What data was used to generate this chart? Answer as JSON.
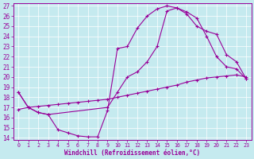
{
  "xlabel": "Windchill (Refroidissement éolien,°C)",
  "bg_color": "#c5eaef",
  "line_color": "#990099",
  "grid_color": "#ffffff",
  "xlim": [
    -0.5,
    23.5
  ],
  "ylim": [
    13.8,
    27.3
  ],
  "yticks": [
    14,
    15,
    16,
    17,
    18,
    19,
    20,
    21,
    22,
    23,
    24,
    25,
    26,
    27
  ],
  "xticks": [
    0,
    1,
    2,
    3,
    4,
    5,
    6,
    7,
    8,
    9,
    10,
    11,
    12,
    13,
    14,
    15,
    16,
    17,
    18,
    19,
    20,
    21,
    22,
    23
  ],
  "line1_x": [
    0,
    1,
    2,
    3,
    4,
    5,
    6,
    7,
    8,
    9,
    10,
    11,
    12,
    13,
    14,
    15,
    16,
    17,
    18,
    19,
    20,
    21,
    22,
    23
  ],
  "line1_y": [
    18.5,
    17.0,
    16.5,
    16.3,
    14.8,
    14.5,
    14.2,
    14.1,
    14.1,
    16.7,
    22.8,
    23.0,
    24.8,
    26.0,
    26.7,
    27.0,
    26.8,
    26.4,
    25.8,
    24.0,
    22.0,
    21.0,
    20.8,
    19.8
  ],
  "line2_x": [
    0,
    1,
    2,
    3,
    9,
    10,
    11,
    12,
    13,
    14,
    15,
    16,
    17,
    18,
    19,
    20,
    21,
    22,
    23
  ],
  "line2_y": [
    18.5,
    17.0,
    16.5,
    16.3,
    17.0,
    18.5,
    20.0,
    20.5,
    21.5,
    23.0,
    26.5,
    26.8,
    26.2,
    25.0,
    24.5,
    24.2,
    22.2,
    21.5,
    19.8
  ],
  "line3_x": [
    0,
    1,
    2,
    3,
    4,
    5,
    6,
    7,
    8,
    9,
    10,
    11,
    12,
    13,
    14,
    15,
    16,
    17,
    18,
    19,
    20,
    21,
    22,
    23
  ],
  "line3_y": [
    16.8,
    17.0,
    17.1,
    17.2,
    17.3,
    17.4,
    17.5,
    17.6,
    17.7,
    17.8,
    18.0,
    18.2,
    18.4,
    18.6,
    18.8,
    19.0,
    19.2,
    19.5,
    19.7,
    19.9,
    20.0,
    20.1,
    20.2,
    20.0
  ]
}
